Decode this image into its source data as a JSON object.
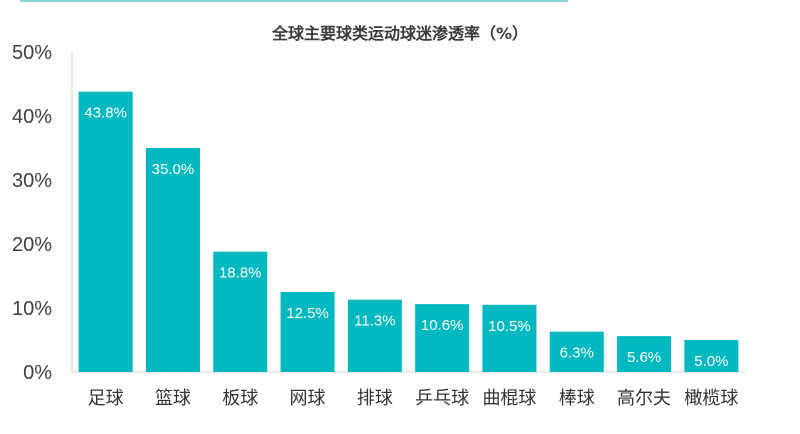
{
  "chart_data": {
    "type": "bar",
    "title": "全球主要球类运动球迷渗透率（%）",
    "xlabel": "",
    "ylabel": "",
    "categories": [
      "足球",
      "篮球",
      "板球",
      "网球",
      "排球",
      "乒乓球",
      "曲棍球",
      "棒球",
      "高尔夫",
      "橄榄球"
    ],
    "values": [
      43.8,
      35.0,
      18.8,
      12.5,
      11.3,
      10.6,
      10.5,
      6.3,
      5.6,
      5.0
    ],
    "data_labels": [
      "43.8%",
      "35.0%",
      "18.8%",
      "12.5%",
      "11.3%",
      "10.6%",
      "10.5%",
      "6.3%",
      "5.6%",
      "5.0%"
    ],
    "ylim": [
      0,
      50
    ],
    "yticks": [
      0,
      10,
      20,
      30,
      40,
      50
    ],
    "ytick_labels": [
      "0%",
      "10%",
      "20%",
      "30%",
      "40%",
      "50%"
    ],
    "grid": false,
    "legend": "none",
    "bar_color": "#00b8bf"
  }
}
